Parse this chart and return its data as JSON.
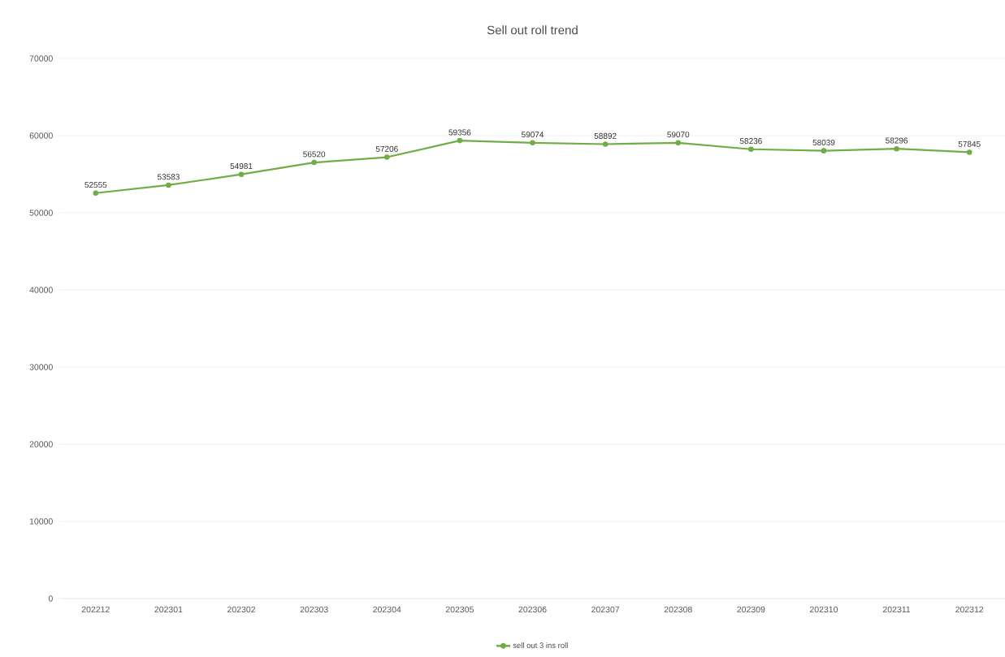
{
  "chart_data": {
    "type": "line",
    "title": "Sell out roll trend",
    "categories": [
      "202212",
      "202301",
      "202302",
      "202303",
      "202304",
      "202305",
      "202306",
      "202307",
      "202308",
      "202309",
      "202310",
      "202311",
      "202312"
    ],
    "series": [
      {
        "name": "sell out 3 ins roll",
        "color": "#70ad47",
        "values": [
          52555,
          53583,
          54981,
          56520,
          57206,
          59356,
          59074,
          58892,
          59070,
          58236,
          58039,
          58296,
          57845
        ]
      }
    ],
    "ylim": [
      0,
      70000
    ],
    "yticks": [
      0,
      10000,
      20000,
      30000,
      40000,
      50000,
      60000,
      70000
    ],
    "grid": "y",
    "legend": "bottom",
    "marker": "circle",
    "line_style": "solid",
    "data_labels": true
  }
}
